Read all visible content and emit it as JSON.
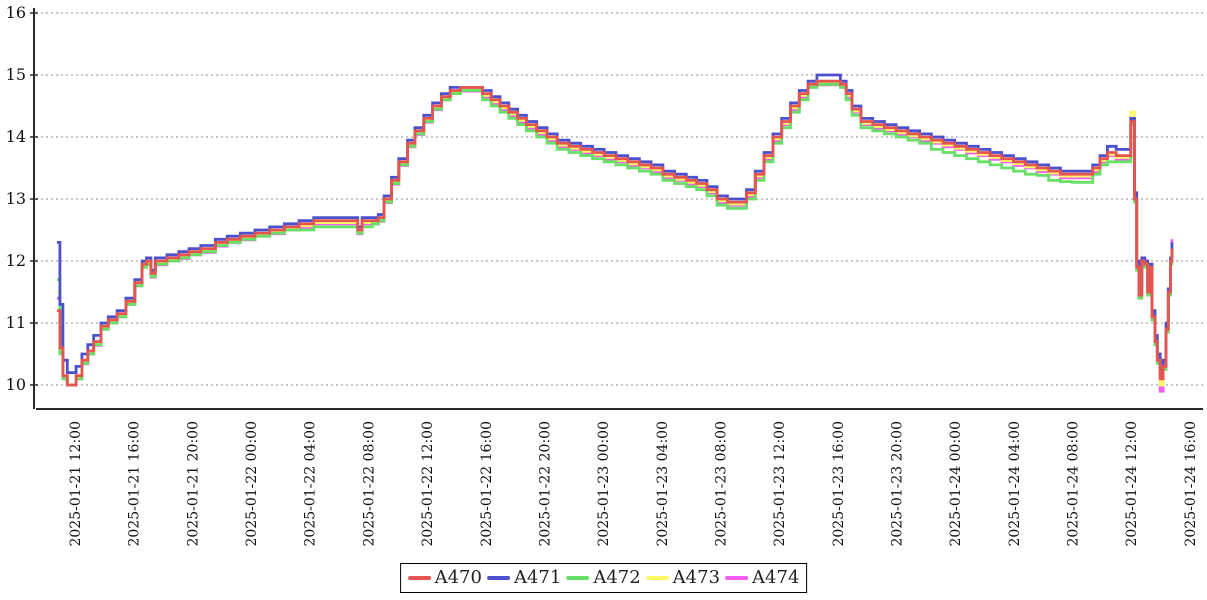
{
  "chart_data": {
    "type": "line",
    "title": "",
    "xlabel": "",
    "ylabel": "",
    "ylim": [
      9.6,
      16
    ],
    "grid": true,
    "grid_style": "dashed-horizontal",
    "legend_position": "bottom-center",
    "y_tick_labels": [
      "16",
      "15",
      "14",
      "13",
      "12",
      "11",
      "10"
    ],
    "y_tick_values": [
      16,
      15,
      14,
      13,
      12,
      11,
      10
    ],
    "x_tick_labels": [
      "2025-01-21 12:00",
      "2025-01-21 16:00",
      "2025-01-21 20:00",
      "2025-01-22 00:00",
      "2025-01-22 04:00",
      "2025-01-22 08:00",
      "2025-01-22 12:00",
      "2025-01-22 16:00",
      "2025-01-22 20:00",
      "2025-01-23 00:00",
      "2025-01-23 04:00",
      "2025-01-23 08:00",
      "2025-01-23 12:00",
      "2025-01-23 16:00",
      "2025-01-23 20:00",
      "2025-01-24 00:00",
      "2025-01-24 04:00",
      "2025-01-24 08:00",
      "2025-01-24 12:00",
      "2025-01-24 16:00"
    ],
    "x_hours": [
      0,
      0.2,
      0.4,
      0.7,
      1.0,
      1.3,
      1.7,
      2.1,
      2.5,
      3.0,
      3.5,
      4.1,
      4.7,
      5.3,
      5.8,
      6.1,
      6.4,
      6.7,
      7.5,
      8.3,
      9.0,
      9.8,
      10.8,
      11.6,
      12.5,
      13.5,
      14.5,
      15.5,
      16.5,
      17.5,
      18.5,
      19.5,
      20.2,
      20.5,
      20.8,
      21.5,
      21.9,
      22.3,
      22.8,
      23.3,
      23.9,
      24.4,
      25.0,
      25.6,
      26.2,
      26.8,
      27.5,
      28.3,
      29.0,
      29.6,
      30.2,
      30.8,
      31.4,
      32.0,
      32.7,
      33.4,
      34.1,
      34.9,
      35.7,
      36.5,
      37.3,
      38.1,
      38.9,
      39.7,
      40.5,
      41.3,
      42.1,
      42.9,
      43.6,
      44.3,
      45.0,
      45.7,
      46.4,
      47.0,
      47.6,
      48.2,
      48.8,
      49.4,
      50.0,
      50.6,
      51.2,
      51.8,
      52.6,
      53.4,
      53.8,
      54.2,
      54.8,
      55.6,
      56.4,
      57.2,
      58.0,
      58.8,
      59.6,
      60.4,
      61.2,
      62.0,
      62.8,
      63.6,
      64.4,
      65.2,
      66.0,
      66.8,
      67.6,
      68.4,
      69.2,
      70.0,
      70.6,
      71.1,
      71.6,
      72.2,
      72.9,
      73.2,
      73.45,
      73.6,
      73.75,
      73.95,
      74.15,
      74.35,
      74.5,
      74.65,
      74.85,
      75.0,
      75.2,
      75.4,
      75.6,
      75.75,
      75.9,
      76.0
    ],
    "series": [
      {
        "name": "A470",
        "color": "#e65450",
        "values": [
          11.2,
          10.6,
          10.15,
          10.0,
          10.0,
          10.15,
          10.4,
          10.55,
          10.7,
          10.95,
          11.05,
          11.15,
          11.35,
          11.65,
          11.95,
          12.0,
          11.8,
          12.0,
          12.05,
          12.1,
          12.15,
          12.2,
          12.3,
          12.35,
          12.4,
          12.45,
          12.5,
          12.55,
          12.6,
          12.65,
          12.65,
          12.65,
          12.65,
          12.5,
          12.65,
          12.65,
          12.7,
          13.0,
          13.3,
          13.6,
          13.9,
          14.1,
          14.3,
          14.5,
          14.65,
          14.75,
          14.8,
          14.8,
          14.7,
          14.6,
          14.5,
          14.4,
          14.3,
          14.2,
          14.1,
          14.0,
          13.9,
          13.85,
          13.8,
          13.75,
          13.7,
          13.65,
          13.6,
          13.55,
          13.5,
          13.4,
          13.35,
          13.3,
          13.25,
          13.15,
          13.0,
          12.95,
          12.95,
          13.1,
          13.4,
          13.7,
          14.0,
          14.25,
          14.5,
          14.7,
          14.85,
          14.9,
          14.9,
          14.85,
          14.7,
          14.45,
          14.25,
          14.2,
          14.15,
          14.1,
          14.05,
          14.0,
          13.95,
          13.9,
          13.85,
          13.8,
          13.75,
          13.7,
          13.65,
          13.6,
          13.55,
          13.5,
          13.45,
          13.4,
          13.4,
          13.4,
          13.5,
          13.65,
          13.75,
          13.7,
          13.7,
          14.25,
          13.0,
          11.9,
          11.45,
          12.0,
          11.95,
          11.5,
          11.9,
          11.1,
          10.7,
          10.4,
          10.1,
          10.3,
          10.9,
          11.5,
          12.0,
          12.2
        ]
      },
      {
        "name": "A471",
        "color": "#4b50ce",
        "values": [
          12.3,
          11.3,
          10.4,
          10.2,
          10.2,
          10.3,
          10.5,
          10.65,
          10.8,
          11.0,
          11.1,
          11.2,
          11.4,
          11.7,
          12.0,
          12.05,
          11.85,
          12.05,
          12.1,
          12.15,
          12.2,
          12.25,
          12.35,
          12.4,
          12.45,
          12.5,
          12.55,
          12.6,
          12.65,
          12.7,
          12.7,
          12.7,
          12.7,
          12.55,
          12.7,
          12.7,
          12.75,
          13.05,
          13.35,
          13.65,
          13.95,
          14.15,
          14.35,
          14.55,
          14.7,
          14.8,
          14.8,
          14.8,
          14.75,
          14.65,
          14.55,
          14.45,
          14.35,
          14.25,
          14.15,
          14.05,
          13.95,
          13.9,
          13.85,
          13.8,
          13.75,
          13.7,
          13.65,
          13.6,
          13.55,
          13.45,
          13.4,
          13.35,
          13.3,
          13.2,
          13.05,
          13.0,
          13.0,
          13.15,
          13.45,
          13.75,
          14.05,
          14.3,
          14.55,
          14.75,
          14.9,
          15.0,
          15.0,
          14.9,
          14.75,
          14.5,
          14.3,
          14.25,
          14.2,
          14.15,
          14.1,
          14.05,
          14.0,
          13.95,
          13.9,
          13.85,
          13.8,
          13.75,
          13.7,
          13.65,
          13.6,
          13.55,
          13.5,
          13.45,
          13.45,
          13.45,
          13.55,
          13.7,
          13.85,
          13.8,
          13.8,
          14.3,
          13.1,
          12.0,
          11.55,
          12.05,
          12.0,
          11.55,
          11.95,
          11.2,
          10.8,
          10.5,
          10.15,
          10.4,
          11.0,
          11.55,
          12.05,
          12.3
        ]
      },
      {
        "name": "A472",
        "color": "#66e166",
        "values": [
          11.7,
          10.5,
          10.1,
          10.0,
          10.0,
          10.1,
          10.35,
          10.5,
          10.65,
          10.9,
          11.0,
          11.1,
          11.3,
          11.6,
          11.9,
          11.95,
          11.75,
          11.95,
          12.0,
          12.05,
          12.1,
          12.15,
          12.25,
          12.3,
          12.35,
          12.4,
          12.45,
          12.5,
          12.5,
          12.55,
          12.55,
          12.55,
          12.55,
          12.45,
          12.55,
          12.6,
          12.65,
          12.95,
          13.25,
          13.55,
          13.85,
          14.05,
          14.25,
          14.45,
          14.6,
          14.7,
          14.75,
          14.75,
          14.6,
          14.5,
          14.4,
          14.3,
          14.2,
          14.1,
          14.0,
          13.9,
          13.8,
          13.75,
          13.7,
          13.65,
          13.6,
          13.55,
          13.5,
          13.45,
          13.4,
          13.3,
          13.25,
          13.2,
          13.15,
          13.05,
          12.9,
          12.85,
          12.85,
          13.0,
          13.3,
          13.6,
          13.9,
          14.15,
          14.4,
          14.6,
          14.8,
          14.85,
          14.85,
          14.8,
          14.6,
          14.35,
          14.15,
          14.1,
          14.05,
          14.0,
          13.95,
          13.9,
          13.8,
          13.75,
          13.7,
          13.65,
          13.6,
          13.55,
          13.5,
          13.45,
          13.4,
          13.38,
          13.3,
          13.28,
          13.27,
          13.27,
          13.4,
          13.55,
          13.6,
          13.6,
          13.6,
          14.2,
          12.95,
          11.85,
          11.4,
          11.95,
          11.9,
          11.45,
          11.85,
          11.05,
          10.65,
          10.35,
          10.15,
          10.25,
          10.85,
          11.45,
          11.95,
          12.2
        ]
      },
      {
        "name": "A473",
        "color": "#fafa66",
        "values": [
          11.5,
          10.55,
          10.12,
          10.0,
          10.0,
          10.12,
          10.37,
          10.52,
          10.67,
          10.92,
          11.02,
          11.12,
          11.32,
          11.62,
          11.92,
          11.97,
          11.77,
          11.97,
          12.02,
          12.07,
          12.12,
          12.17,
          12.27,
          12.32,
          12.37,
          12.42,
          12.47,
          12.52,
          12.57,
          12.62,
          12.62,
          12.62,
          12.62,
          12.47,
          12.62,
          12.62,
          12.67,
          12.97,
          13.27,
          13.57,
          13.87,
          14.07,
          14.27,
          14.47,
          14.62,
          14.72,
          14.77,
          14.77,
          14.67,
          14.57,
          14.47,
          14.37,
          14.27,
          14.17,
          14.07,
          13.97,
          13.87,
          13.82,
          13.77,
          13.72,
          13.67,
          13.62,
          13.57,
          13.52,
          13.47,
          13.37,
          13.32,
          13.27,
          13.22,
          13.12,
          12.97,
          12.92,
          12.92,
          13.07,
          13.37,
          13.67,
          13.97,
          14.22,
          14.47,
          14.67,
          14.82,
          14.87,
          14.87,
          14.82,
          14.67,
          14.42,
          14.22,
          14.17,
          14.12,
          14.07,
          14.02,
          13.97,
          13.92,
          13.87,
          13.82,
          13.77,
          13.72,
          13.67,
          13.62,
          13.57,
          13.52,
          13.47,
          13.42,
          13.37,
          13.37,
          13.37,
          13.47,
          13.62,
          13.72,
          13.67,
          13.67,
          14.4,
          13.05,
          11.95,
          11.5,
          12.02,
          11.97,
          11.52,
          11.92,
          11.15,
          10.75,
          10.45,
          10.0,
          10.35,
          10.95,
          11.52,
          12.02,
          12.25
        ]
      },
      {
        "name": "A474",
        "color": "#f25cf2",
        "values": [
          11.4,
          10.52,
          10.1,
          10.0,
          10.0,
          10.1,
          10.34,
          10.5,
          10.64,
          10.9,
          11.0,
          11.1,
          11.3,
          11.6,
          11.9,
          11.94,
          11.74,
          11.94,
          12.0,
          12.04,
          12.1,
          12.14,
          12.24,
          12.3,
          12.34,
          12.4,
          12.44,
          12.5,
          12.54,
          12.6,
          12.6,
          12.6,
          12.6,
          12.44,
          12.6,
          12.6,
          12.64,
          12.94,
          13.24,
          13.54,
          13.84,
          14.04,
          14.24,
          14.44,
          14.6,
          14.7,
          14.74,
          14.74,
          14.64,
          14.54,
          14.44,
          14.34,
          14.24,
          14.14,
          14.04,
          13.94,
          13.84,
          13.8,
          13.74,
          13.7,
          13.64,
          13.6,
          13.54,
          13.5,
          13.44,
          13.34,
          13.3,
          13.24,
          13.2,
          13.1,
          12.94,
          12.9,
          12.9,
          13.04,
          13.34,
          13.64,
          13.94,
          14.2,
          14.44,
          14.64,
          14.8,
          14.84,
          14.84,
          14.8,
          14.64,
          14.4,
          14.2,
          14.14,
          14.1,
          14.04,
          14.0,
          13.94,
          13.9,
          13.84,
          13.8,
          13.74,
          13.7,
          13.64,
          13.6,
          13.54,
          13.5,
          13.44,
          13.4,
          13.34,
          13.34,
          13.34,
          13.44,
          13.6,
          13.7,
          13.64,
          13.64,
          14.2,
          13.0,
          11.9,
          11.44,
          11.98,
          11.94,
          11.48,
          11.88,
          11.08,
          10.68,
          10.38,
          9.9,
          10.28,
          10.88,
          11.46,
          11.98,
          12.35
        ]
      }
    ],
    "colors": {
      "grid": "#909090",
      "axis": "#2b2b2b",
      "background": "#ffffff"
    }
  }
}
